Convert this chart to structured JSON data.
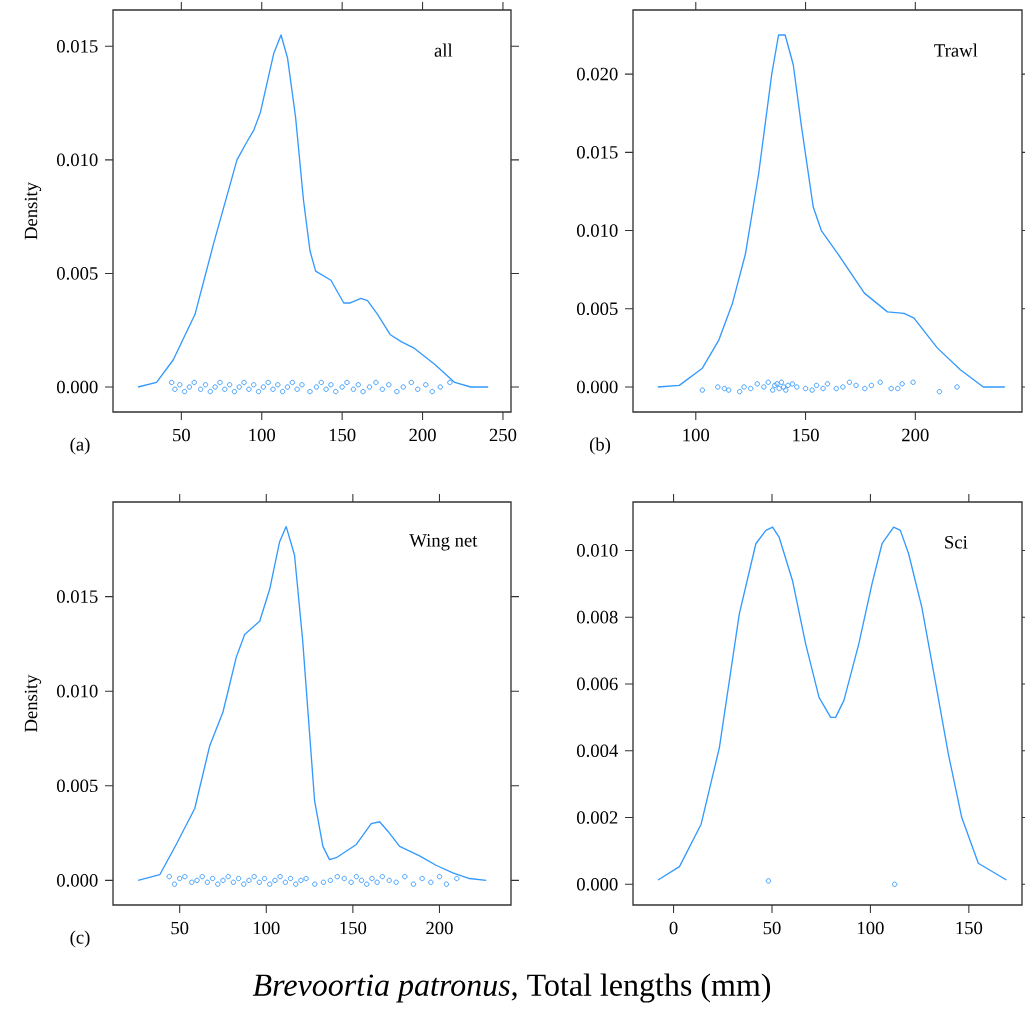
{
  "chart_data": [
    {
      "type": "line",
      "title": "all",
      "ylabel": "Density",
      "annotations": [
        "(a)"
      ],
      "xlim": [
        7.5,
        255
      ],
      "ylim": [
        -0.0011,
        0.0166
      ],
      "xticks": [
        50,
        100,
        150,
        200,
        250
      ],
      "yticks": [
        {
          "value": 0,
          "label": "0.000"
        },
        {
          "value": 0.005,
          "label": "0.005"
        },
        {
          "value": 0.01,
          "label": "0.010"
        },
        {
          "value": 0.015,
          "label": "0.015"
        }
      ],
      "series": [
        {
          "color": "#3399ff",
          "line_style": "solid",
          "x": [
            23,
            34.6,
            45,
            58.5,
            70,
            84.6,
            90.8,
            95,
            99.2,
            107.5,
            112,
            116,
            121,
            126,
            130,
            133.5,
            143,
            151,
            155,
            161.7,
            165.8,
            172,
            180,
            186.7,
            195,
            207.5,
            220,
            230,
            240.8
          ],
          "values": [
            0,
            0.0002,
            0.0012,
            0.0032,
            0.0063,
            0.01,
            0.0108,
            0.0113,
            0.0121,
            0.0147,
            0.0155,
            0.0145,
            0.0119,
            0.0082,
            0.006,
            0.0051,
            0.0047,
            0.0037,
            0.0037,
            0.0039,
            0.0038,
            0.0032,
            0.0023,
            0.002,
            0.0017,
            0.001,
            0.0002,
            0,
            0
          ]
        },
        {
          "type": "scatter",
          "color": "#3399ff",
          "marker": "circle",
          "x": [
            44,
            46,
            49,
            52,
            55,
            58,
            62,
            65,
            68,
            71,
            74,
            77,
            80,
            83,
            86,
            89,
            92,
            95,
            98,
            101,
            104,
            107,
            110,
            113,
            116,
            119,
            122,
            125,
            130,
            134,
            137,
            140,
            143,
            146,
            150,
            153,
            157,
            160,
            163,
            167,
            171,
            175,
            179,
            184,
            188,
            193,
            197,
            202,
            206,
            211,
            217
          ],
          "values": [
            0.0002,
            -0.0001,
            0.0001,
            -0.0002,
            0,
            0.0002,
            -0.0001,
            0.0001,
            -0.0002,
            0,
            0.0002,
            -0.0001,
            0.0001,
            -0.0002,
            0,
            0.0002,
            -0.0001,
            0.0001,
            -0.0002,
            0,
            0.0002,
            -0.0001,
            0.0001,
            -0.0002,
            0,
            0.0002,
            -0.0001,
            0.0001,
            -0.0002,
            0,
            0.0002,
            -0.0001,
            0.0001,
            -0.0002,
            0,
            0.0002,
            -0.0001,
            0.0001,
            -0.0002,
            0,
            0.0002,
            -0.0001,
            0.0001,
            -0.0002,
            0,
            0.0002,
            -0.0001,
            0.0001,
            -0.0002,
            0,
            0.0002
          ]
        }
      ]
    },
    {
      "type": "line",
      "title": "Trawl",
      "annotations": [
        "(b)"
      ],
      "xlim": [
        71.4,
        248.6
      ],
      "ylim": [
        -0.0016,
        0.0241
      ],
      "xticks": [
        100,
        150,
        200
      ],
      "yticks": [
        {
          "value": 0,
          "label": "0.000"
        },
        {
          "value": 0.005,
          "label": "0.005"
        },
        {
          "value": 0.01,
          "label": "0.010"
        },
        {
          "value": 0.015,
          "label": "0.015"
        },
        {
          "value": 0.02,
          "label": "0.020"
        }
      ],
      "series": [
        {
          "color": "#3399ff",
          "line_style": "solid",
          "x": [
            82.7,
            92.5,
            103,
            110.5,
            116.6,
            122.6,
            128.6,
            134.6,
            137.7,
            140.7,
            144.4,
            148.2,
            153.5,
            157.2,
            164.8,
            176.8,
            187.3,
            194.9,
            199.4,
            210,
            220.5,
            231,
            240.8
          ],
          "values": [
            0,
            0.0001,
            0.0012,
            0.003,
            0.0053,
            0.0085,
            0.0136,
            0.02,
            0.0225,
            0.0225,
            0.0206,
            0.0166,
            0.0115,
            0.01,
            0.0085,
            0.006,
            0.0048,
            0.0047,
            0.0044,
            0.0025,
            0.0011,
            0,
            0
          ]
        },
        {
          "type": "scatter",
          "color": "#3399ff",
          "marker": "circle",
          "x": [
            103,
            110,
            113,
            115,
            120,
            122,
            125,
            128,
            131,
            133,
            135,
            136,
            137,
            138,
            139,
            140,
            141,
            142,
            144,
            146,
            150,
            153,
            155,
            158,
            160,
            164,
            167,
            170,
            173,
            177,
            180,
            184,
            189,
            192,
            194,
            199,
            211,
            219
          ],
          "values": [
            -0.0002,
            0,
            -0.0001,
            -0.0002,
            -0.0003,
            0,
            -0.0001,
            0.0002,
            0,
            0.0003,
            -0.0002,
            0.0001,
            0.0002,
            -0.0001,
            0.0003,
            0,
            -0.0002,
            0.0001,
            0.0002,
            0,
            -0.0001,
            -0.0002,
            0.0001,
            -0.0001,
            0.0002,
            -0.0001,
            0,
            0.0003,
            0.0001,
            -0.0001,
            0.0001,
            0.0003,
            -0.0001,
            -0.0001,
            0.0002,
            0.0003,
            -0.0003,
            0
          ]
        }
      ]
    },
    {
      "type": "line",
      "title": "Wing net",
      "ylabel": "Density",
      "xlabel": "*Brevoortia patronus*, Total lengths (mm)",
      "annotations": [
        "(c)"
      ],
      "xlim": [
        11.5,
        241.3
      ],
      "ylim": [
        -0.0013,
        0.02
      ],
      "xticks": [
        50,
        100,
        150,
        200
      ],
      "yticks": [
        {
          "value": 0,
          "label": "0.000"
        },
        {
          "value": 0.005,
          "label": "0.005"
        },
        {
          "value": 0.01,
          "label": "0.010"
        },
        {
          "value": 0.015,
          "label": "0.015"
        }
      ],
      "series": [
        {
          "color": "#3399ff",
          "line_style": "solid",
          "x": [
            26,
            38.5,
            48,
            58.7,
            67.3,
            75,
            82.7,
            87.5,
            96.2,
            102,
            107.7,
            111.5,
            116.3,
            121,
            127.9,
            132.7,
            136.5,
            140.4,
            152,
            160.6,
            165.4,
            170.2,
            177,
            188.5,
            198,
            207.7,
            217.3,
            227
          ],
          "values": [
            0,
            0.0003,
            0.0019,
            0.0038,
            0.0071,
            0.0089,
            0.0118,
            0.013,
            0.0137,
            0.0154,
            0.0179,
            0.0187,
            0.0172,
            0.0127,
            0.0042,
            0.0018,
            0.0011,
            0.0012,
            0.0019,
            0.003,
            0.0031,
            0.0026,
            0.0018,
            0.0013,
            0.0008,
            0.0004,
            0.0001,
            0
          ]
        },
        {
          "type": "scatter",
          "color": "#3399ff",
          "marker": "circle",
          "x": [
            44,
            47,
            50,
            53,
            57,
            60,
            63,
            66,
            69,
            72,
            75,
            78,
            81,
            84,
            87,
            90,
            93,
            96,
            99,
            102,
            105,
            108,
            111,
            114,
            117,
            120,
            123,
            128,
            133,
            137,
            141,
            145,
            149,
            152,
            155,
            158,
            161,
            164,
            167,
            171,
            175,
            180,
            185,
            190,
            195,
            200,
            204,
            210
          ],
          "values": [
            0.0002,
            -0.0002,
            0.0001,
            0.0002,
            -0.0001,
            0,
            0.0002,
            -0.0001,
            0.0001,
            -0.0002,
            0,
            0.0002,
            -0.0001,
            0.0001,
            -0.0002,
            0,
            0.0002,
            -0.0001,
            0.0001,
            -0.0002,
            0,
            0.0002,
            -0.0001,
            0.0001,
            -0.0002,
            0,
            0.0001,
            -0.0002,
            -0.0001,
            0,
            0.0002,
            0.0001,
            -0.0001,
            0.0002,
            0,
            -0.0002,
            0.0001,
            -0.0001,
            0.0002,
            0,
            -0.0001,
            0.0002,
            -0.0002,
            0.0001,
            -0.0001,
            0.0002,
            -0.0002,
            0.0001
          ]
        }
      ]
    },
    {
      "type": "line",
      "title": "Sci",
      "xlim": [
        -20.6,
        177
      ],
      "ylim": [
        -0.00062,
        0.01145
      ],
      "xticks": [
        0,
        50,
        100,
        150
      ],
      "yticks": [
        {
          "value": 0,
          "label": "0.000"
        },
        {
          "value": 0.002,
          "label": "0.002"
        },
        {
          "value": 0.004,
          "label": "0.004"
        },
        {
          "value": 0.006,
          "label": "0.006"
        },
        {
          "value": 0.008,
          "label": "0.008"
        },
        {
          "value": 0.01,
          "label": "0.010"
        }
      ],
      "series": [
        {
          "color": "#3399ff",
          "line_style": "solid",
          "x": [
            -7.9,
            3,
            14,
            23.3,
            33.4,
            41.8,
            46.9,
            50.3,
            53.6,
            60.4,
            67.1,
            73.9,
            79.8,
            82.3,
            86.5,
            94.1,
            100.8,
            105.9,
            111.8,
            115.2,
            119.4,
            126.1,
            132.9,
            139.6,
            146.4,
            154.8,
            169.1
          ],
          "values": [
            0.00013,
            0.00053,
            0.0018,
            0.0041,
            0.0081,
            0.0102,
            0.0106,
            0.0107,
            0.0104,
            0.0091,
            0.0072,
            0.0056,
            0.005,
            0.005,
            0.0055,
            0.0072,
            0.009,
            0.0102,
            0.0107,
            0.0106,
            0.0099,
            0.0083,
            0.0061,
            0.0039,
            0.002,
            0.00063,
            0.00013
          ]
        },
        {
          "type": "scatter",
          "color": "#3399ff",
          "marker": "circle",
          "x": [
            48.2,
            112.3
          ],
          "values": [
            0.0001,
            0
          ]
        }
      ]
    }
  ]
}
